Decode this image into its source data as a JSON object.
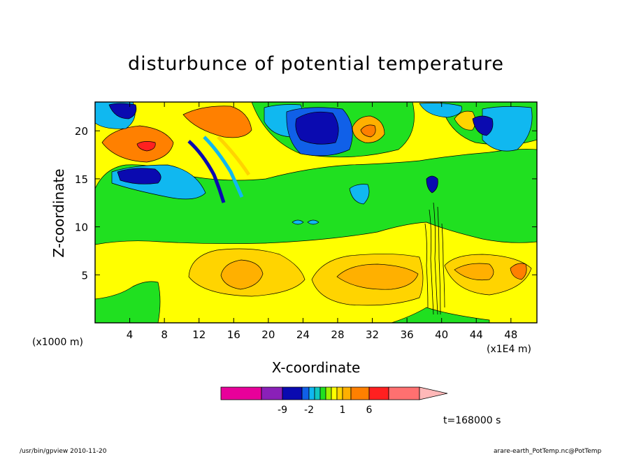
{
  "chart_data": {
    "type": "heatmap",
    "title": "disturbunce of potential temperature",
    "xlabel": "X-coordinate",
    "ylabel": "Z-coordinate",
    "x_unit": "(x1E4 m)",
    "y_unit": "(x1000 m)",
    "xlim": [
      0,
      51
    ],
    "ylim": [
      0,
      23
    ],
    "x_ticks": [
      4,
      8,
      12,
      16,
      20,
      24,
      28,
      32,
      36,
      40,
      44,
      48
    ],
    "y_ticks": [
      5,
      10,
      15,
      20
    ],
    "colorbar": {
      "colors": [
        "#e8009a",
        "#8a20b8",
        "#0a0ab0",
        "#1060e8",
        "#10b8f0",
        "#10c8c0",
        "#20e020",
        "#a0f000",
        "#ffff00",
        "#ffd400",
        "#ffb000",
        "#ff8000",
        "#ff2020",
        "#ff7070",
        "#ffb8b8"
      ],
      "tick_labels": [
        "-9",
        "-2",
        "1",
        "6"
      ]
    },
    "annotation": "t=168000 s",
    "grid": false
  },
  "footer": {
    "left": "/usr/bin/gpview   2010-11-20",
    "right": "arare-earth_PotTemp.nc@PotTemp"
  }
}
